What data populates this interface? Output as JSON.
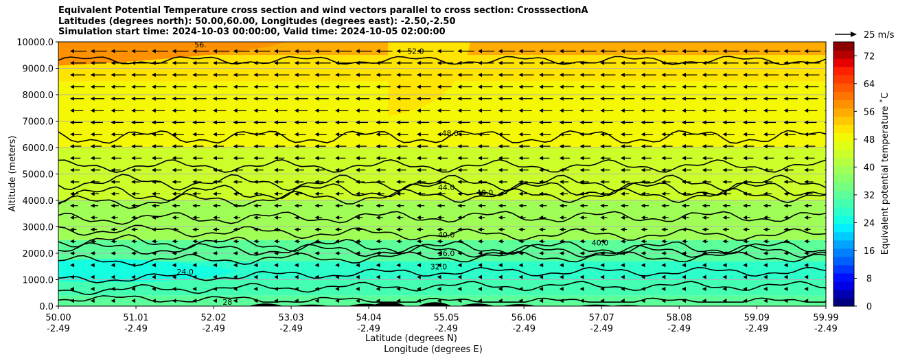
{
  "chart_data": {
    "type": "contour-cross-section",
    "title_lines": [
      "Equivalent Potential Temperature cross section and wind vectors parallel to cross section: CrosssectionA",
      "Latitudes (degrees north): 50.00,60.00, Longitudes (degrees east): -2.50,-2.50",
      "Simulation start time: 2024-10-03 00:00:00, Valid time: 2024-10-05 02:00:00"
    ],
    "ylabel": "Altitude (meters)",
    "xlabel_lat": "Latitude (degrees N)",
    "xlabel_lon": "Longitude (degrees E)",
    "ylim": [
      0,
      10000
    ],
    "y_ticks": [
      "0.0",
      "1000.0",
      "2000.0",
      "3000.0",
      "4000.0",
      "5000.0",
      "6000.0",
      "7000.0",
      "8000.0",
      "9000.0",
      "10000.0"
    ],
    "y_tick_values": [
      0,
      1000,
      2000,
      3000,
      4000,
      5000,
      6000,
      7000,
      8000,
      9000,
      10000
    ],
    "xlim": [
      50.0,
      59.99
    ],
    "x_ticks": [
      {
        "lat": "50.00",
        "lon": "-2.49",
        "value": 50.0
      },
      {
        "lat": "51.01",
        "lon": "-2.49",
        "value": 51.01
      },
      {
        "lat": "52.02",
        "lon": "-2.49",
        "value": 52.02
      },
      {
        "lat": "53.03",
        "lon": "-2.49",
        "value": 53.03
      },
      {
        "lat": "54.04",
        "lon": "-2.49",
        "value": 54.04
      },
      {
        "lat": "55.05",
        "lon": "-2.49",
        "value": 55.05
      },
      {
        "lat": "56.06",
        "lon": "-2.49",
        "value": 56.06
      },
      {
        "lat": "57.07",
        "lon": "-2.49",
        "value": 57.07
      },
      {
        "lat": "58.08",
        "lon": "-2.49",
        "value": 58.08
      },
      {
        "lat": "59.09",
        "lon": "-2.49",
        "value": 59.09
      },
      {
        "lat": "59.99",
        "lon": "-2.49",
        "value": 59.99
      }
    ],
    "colorbar": {
      "label": "Equivalent potential temperature ˚C",
      "min": 0,
      "max": 76,
      "ticks": [
        "0",
        "8",
        "16",
        "24",
        "32",
        "40",
        "48",
        "56",
        "64",
        "72"
      ],
      "tick_values": [
        0,
        8,
        16,
        24,
        32,
        40,
        48,
        56,
        64,
        72
      ],
      "colors": [
        "#000080",
        "#0000b2",
        "#0000e6",
        "#0010ff",
        "#0038ff",
        "#0060ff",
        "#0080ff",
        "#00a4ff",
        "#00ccff",
        "#00f0ff",
        "#14ffe2",
        "#2cffca",
        "#44ffb2",
        "#5cff9a",
        "#74ff82",
        "#8aff6c",
        "#a0ff56",
        "#b6ff40",
        "#ccff2a",
        "#e0ff16",
        "#f4f802",
        "#ffe400",
        "#ffc800",
        "#ffac00",
        "#ff9000",
        "#ff7400",
        "#ff5800",
        "#ff3c00",
        "#ff2000",
        "#e60000",
        "#b40000",
        "#8a0000"
      ]
    },
    "wind_reference": {
      "label": "25 m/s",
      "speed": 25
    },
    "contour_lines": [
      {
        "level": 24,
        "label": "24.0"
      },
      {
        "level": 28,
        "label": "28"
      },
      {
        "level": 32,
        "label": "32.0"
      },
      {
        "level": 36,
        "label": "36.0"
      },
      {
        "level": 40,
        "label": "40.0"
      },
      {
        "level": 44,
        "label": "44.0"
      },
      {
        "level": 48,
        "label": "48.0"
      },
      {
        "level": 52,
        "label": "52.0"
      },
      {
        "level": 56,
        "label": "56."
      }
    ],
    "theta_e_bands": [
      {
        "alt_min": 0,
        "alt_max": 400,
        "theta_e": 32
      },
      {
        "alt_min": 400,
        "alt_max": 1000,
        "theta_e": 30
      },
      {
        "alt_min": 1000,
        "alt_max": 1700,
        "theta_e": 28
      },
      {
        "alt_min": 1700,
        "alt_max": 2500,
        "theta_e": 33
      },
      {
        "alt_min": 2500,
        "alt_max": 4000,
        "theta_e": 40
      },
      {
        "alt_min": 4000,
        "alt_max": 6000,
        "theta_e": 44
      },
      {
        "alt_min": 6000,
        "alt_max": 8500,
        "theta_e": 48
      },
      {
        "alt_min": 8500,
        "alt_max": 9500,
        "theta_e": 52
      },
      {
        "alt_min": 9500,
        "alt_max": 10000,
        "theta_e": 56
      }
    ]
  }
}
